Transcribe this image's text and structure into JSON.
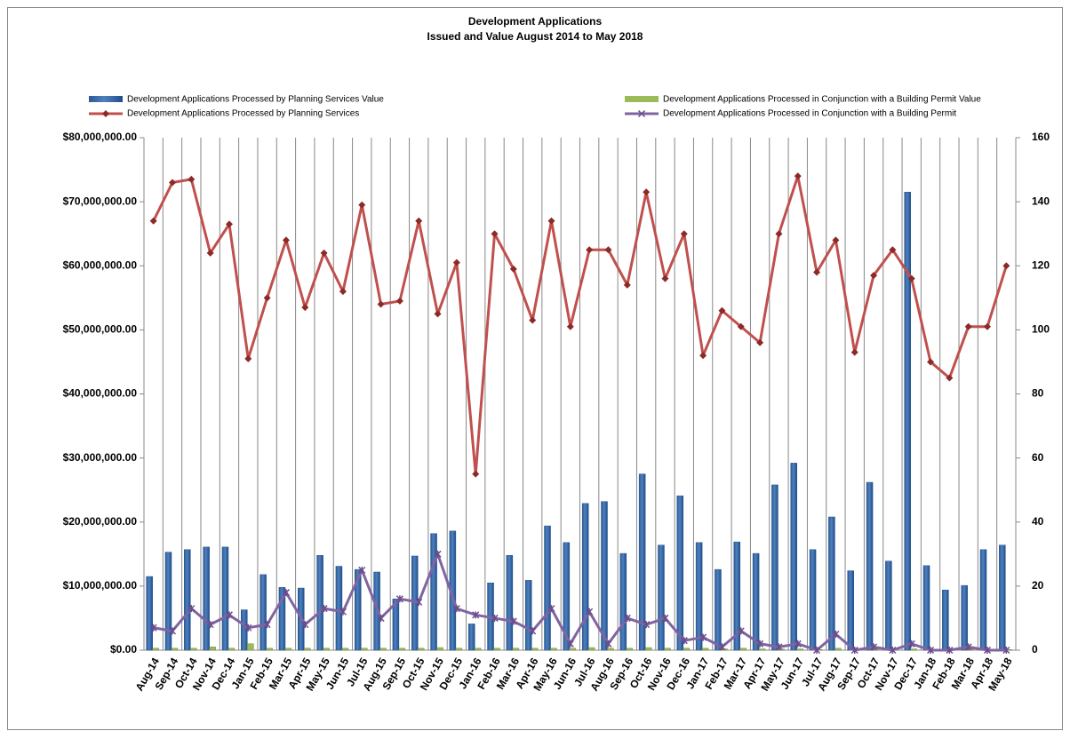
{
  "chart_data": {
    "type": "bar",
    "title": "Development Applications",
    "subtitle": "Issued and  Value August 2014 to May 2018",
    "categories": [
      "Aug-14",
      "Sep-14",
      "Oct-14",
      "Nov-14",
      "Dec-14",
      "Jan-15",
      "Feb-15",
      "Mar-15",
      "Apr-15",
      "May-15",
      "Jun-15",
      "Jul-15",
      "Aug-15",
      "Sep-15",
      "Oct-15",
      "Nov-15",
      "Dec-15",
      "Jan-16",
      "Feb-16",
      "Mar-16",
      "Apr-16",
      "May-16",
      "Jun-16",
      "Jul-16",
      "Aug-16",
      "Sep-16",
      "Oct-16",
      "Nov-16",
      "Dec-16",
      "Jan-17",
      "Feb-17",
      "Mar-17",
      "Apr-17",
      "May-17",
      "Jun-17",
      "Jul-17",
      "Aug-17",
      "Sep-17",
      "Oct-17",
      "Nov-17",
      "Dec-17",
      "Jan-18",
      "Feb-18",
      "Mar-18",
      "Apr-18",
      "May-18"
    ],
    "series": [
      {
        "name": "Development Applications Processed by Planning Services Value",
        "color": "#4f81bd",
        "values": [
          11500000,
          15300000,
          15700000,
          16100000,
          16100000,
          6300000,
          11800000,
          9800000,
          9700000,
          14800000,
          13100000,
          12600000,
          12200000,
          8000000,
          14700000,
          18200000,
          18600000,
          4100000,
          10500000,
          14800000,
          10900000,
          19400000,
          16800000,
          22900000,
          23200000,
          15100000,
          27500000,
          16400000,
          24100000,
          16800000,
          12600000,
          16900000,
          15100000,
          25800000,
          29200000,
          15700000,
          20800000,
          12400000,
          26200000,
          13900000,
          71500000,
          13200000,
          9400000,
          10100000,
          15700000,
          16400000
        ]
      },
      {
        "name": "Development Applications Processed in Conjunction with a Building Permit Value",
        "color": "#9bbb59",
        "values": [
          300000,
          300000,
          300000,
          500000,
          300000,
          1000000,
          300000,
          300000,
          300000,
          300000,
          300000,
          300000,
          300000,
          300000,
          300000,
          400000,
          300000,
          300000,
          300000,
          300000,
          300000,
          300000,
          300000,
          400000,
          300000,
          300000,
          400000,
          300000,
          300000,
          300000,
          200000,
          300000,
          200000,
          200000,
          200000,
          100000,
          300000,
          100000,
          200000,
          100000,
          200000,
          100000,
          100000,
          200000,
          100000,
          100000
        ]
      },
      {
        "name": "Development Applications Processed by Planning Services",
        "color": "#c0504d",
        "axis": "y2",
        "values": [
          134,
          146,
          147,
          124,
          133,
          91,
          110,
          128,
          107,
          124,
          112,
          139,
          108,
          109,
          134,
          105,
          121,
          55,
          130,
          119,
          103,
          134,
          101,
          125,
          125,
          114,
          143,
          116,
          130,
          92,
          106,
          101,
          96,
          130,
          148,
          118,
          128,
          93,
          117,
          125,
          116,
          90,
          85,
          101,
          101,
          120
        ]
      },
      {
        "name": "Development Applications Processed in Conjunction with a Building Permit",
        "color": "#8064a2",
        "axis": "y2",
        "values": [
          7,
          6,
          13,
          8,
          11,
          7,
          8,
          18,
          8,
          13,
          12,
          25,
          10,
          16,
          15,
          30,
          13,
          11,
          10,
          9,
          6,
          13,
          2,
          12,
          2,
          10,
          8,
          10,
          3,
          4,
          1,
          6,
          2,
          1,
          2,
          0,
          5,
          0,
          1,
          0,
          2,
          0,
          0,
          1,
          0,
          0
        ]
      }
    ],
    "ylim": [
      0,
      80000000
    ],
    "yticks": [
      {
        "value": 0,
        "label": "$0.00"
      },
      {
        "value": 10000000,
        "label": "$10,000,000.00"
      },
      {
        "value": 20000000,
        "label": "$20,000,000.00"
      },
      {
        "value": 30000000,
        "label": "$30,000,000.00"
      },
      {
        "value": 40000000,
        "label": "$40,000,000.00"
      },
      {
        "value": 50000000,
        "label": "$50,000,000.00"
      },
      {
        "value": 60000000,
        "label": "$60,000,000.00"
      },
      {
        "value": 70000000,
        "label": "$70,000,000.00"
      },
      {
        "value": 80000000,
        "label": "$80,000,000.00"
      }
    ],
    "y2lim": [
      0,
      160
    ],
    "y2ticks": [
      0,
      20,
      40,
      60,
      80,
      100,
      120,
      140,
      160
    ]
  }
}
